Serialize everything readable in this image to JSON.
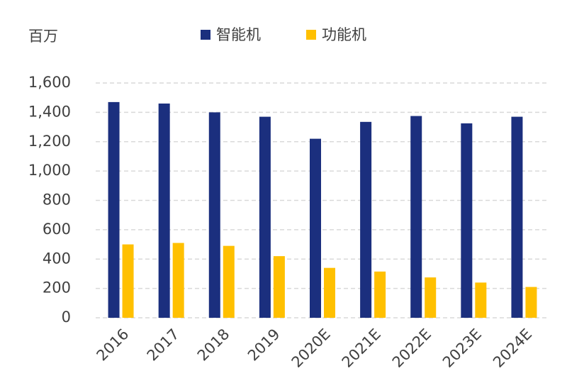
{
  "chart_data": {
    "type": "bar",
    "y_unit": "百万",
    "categories": [
      "2016",
      "2017",
      "2018",
      "2019",
      "2020E",
      "2021E",
      "2022E",
      "2023E",
      "2024E"
    ],
    "series": [
      {
        "name": "智能机",
        "color": "#1b2f7e",
        "values": [
          1470,
          1460,
          1400,
          1370,
          1220,
          1335,
          1375,
          1325,
          1370
        ]
      },
      {
        "name": "功能机",
        "color": "#ffc000",
        "values": [
          500,
          510,
          490,
          420,
          340,
          315,
          275,
          240,
          210
        ]
      }
    ],
    "ylim": [
      0,
      1600
    ],
    "yticks": [
      0,
      200,
      400,
      600,
      800,
      {
        "value": 1000,
        "label": "1,000"
      },
      {
        "value": 1200,
        "label": "1,200"
      },
      {
        "value": 1400,
        "label": "1,400"
      },
      {
        "value": 1600,
        "label": "1,600"
      }
    ],
    "grid": true,
    "legend": "top"
  }
}
